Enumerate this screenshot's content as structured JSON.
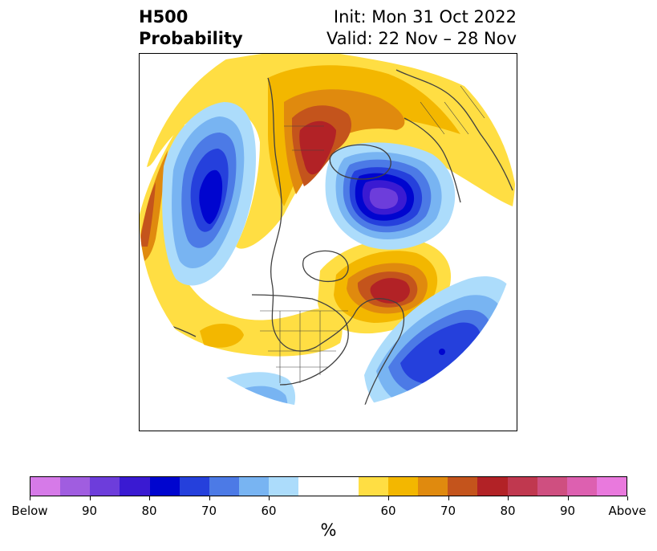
{
  "header": {
    "title_line1": "H500",
    "title_line2": "Probability",
    "init_text": "Init: Mon 31 Oct 2022",
    "valid_text": "Valid: 22 Nov – 28 Nov"
  },
  "colorbar": {
    "colors": [
      "#d67ae8",
      "#a05de0",
      "#6d3ddb",
      "#3a1ad2",
      "#0005cf",
      "#2540dc",
      "#4c7ae6",
      "#78b4f2",
      "#acdcfb",
      "#ffffff",
      "#ffffff",
      "#ffde43",
      "#f3b700",
      "#e08a0e",
      "#c4541c",
      "#b22226",
      "#c0384f",
      "#cf4f80",
      "#dd60b0",
      "#e979dd"
    ],
    "tick_labels": [
      "Below",
      "90",
      "80",
      "70",
      "60",
      "60",
      "70",
      "80",
      "90",
      "Above"
    ],
    "unit_label": "%"
  }
}
